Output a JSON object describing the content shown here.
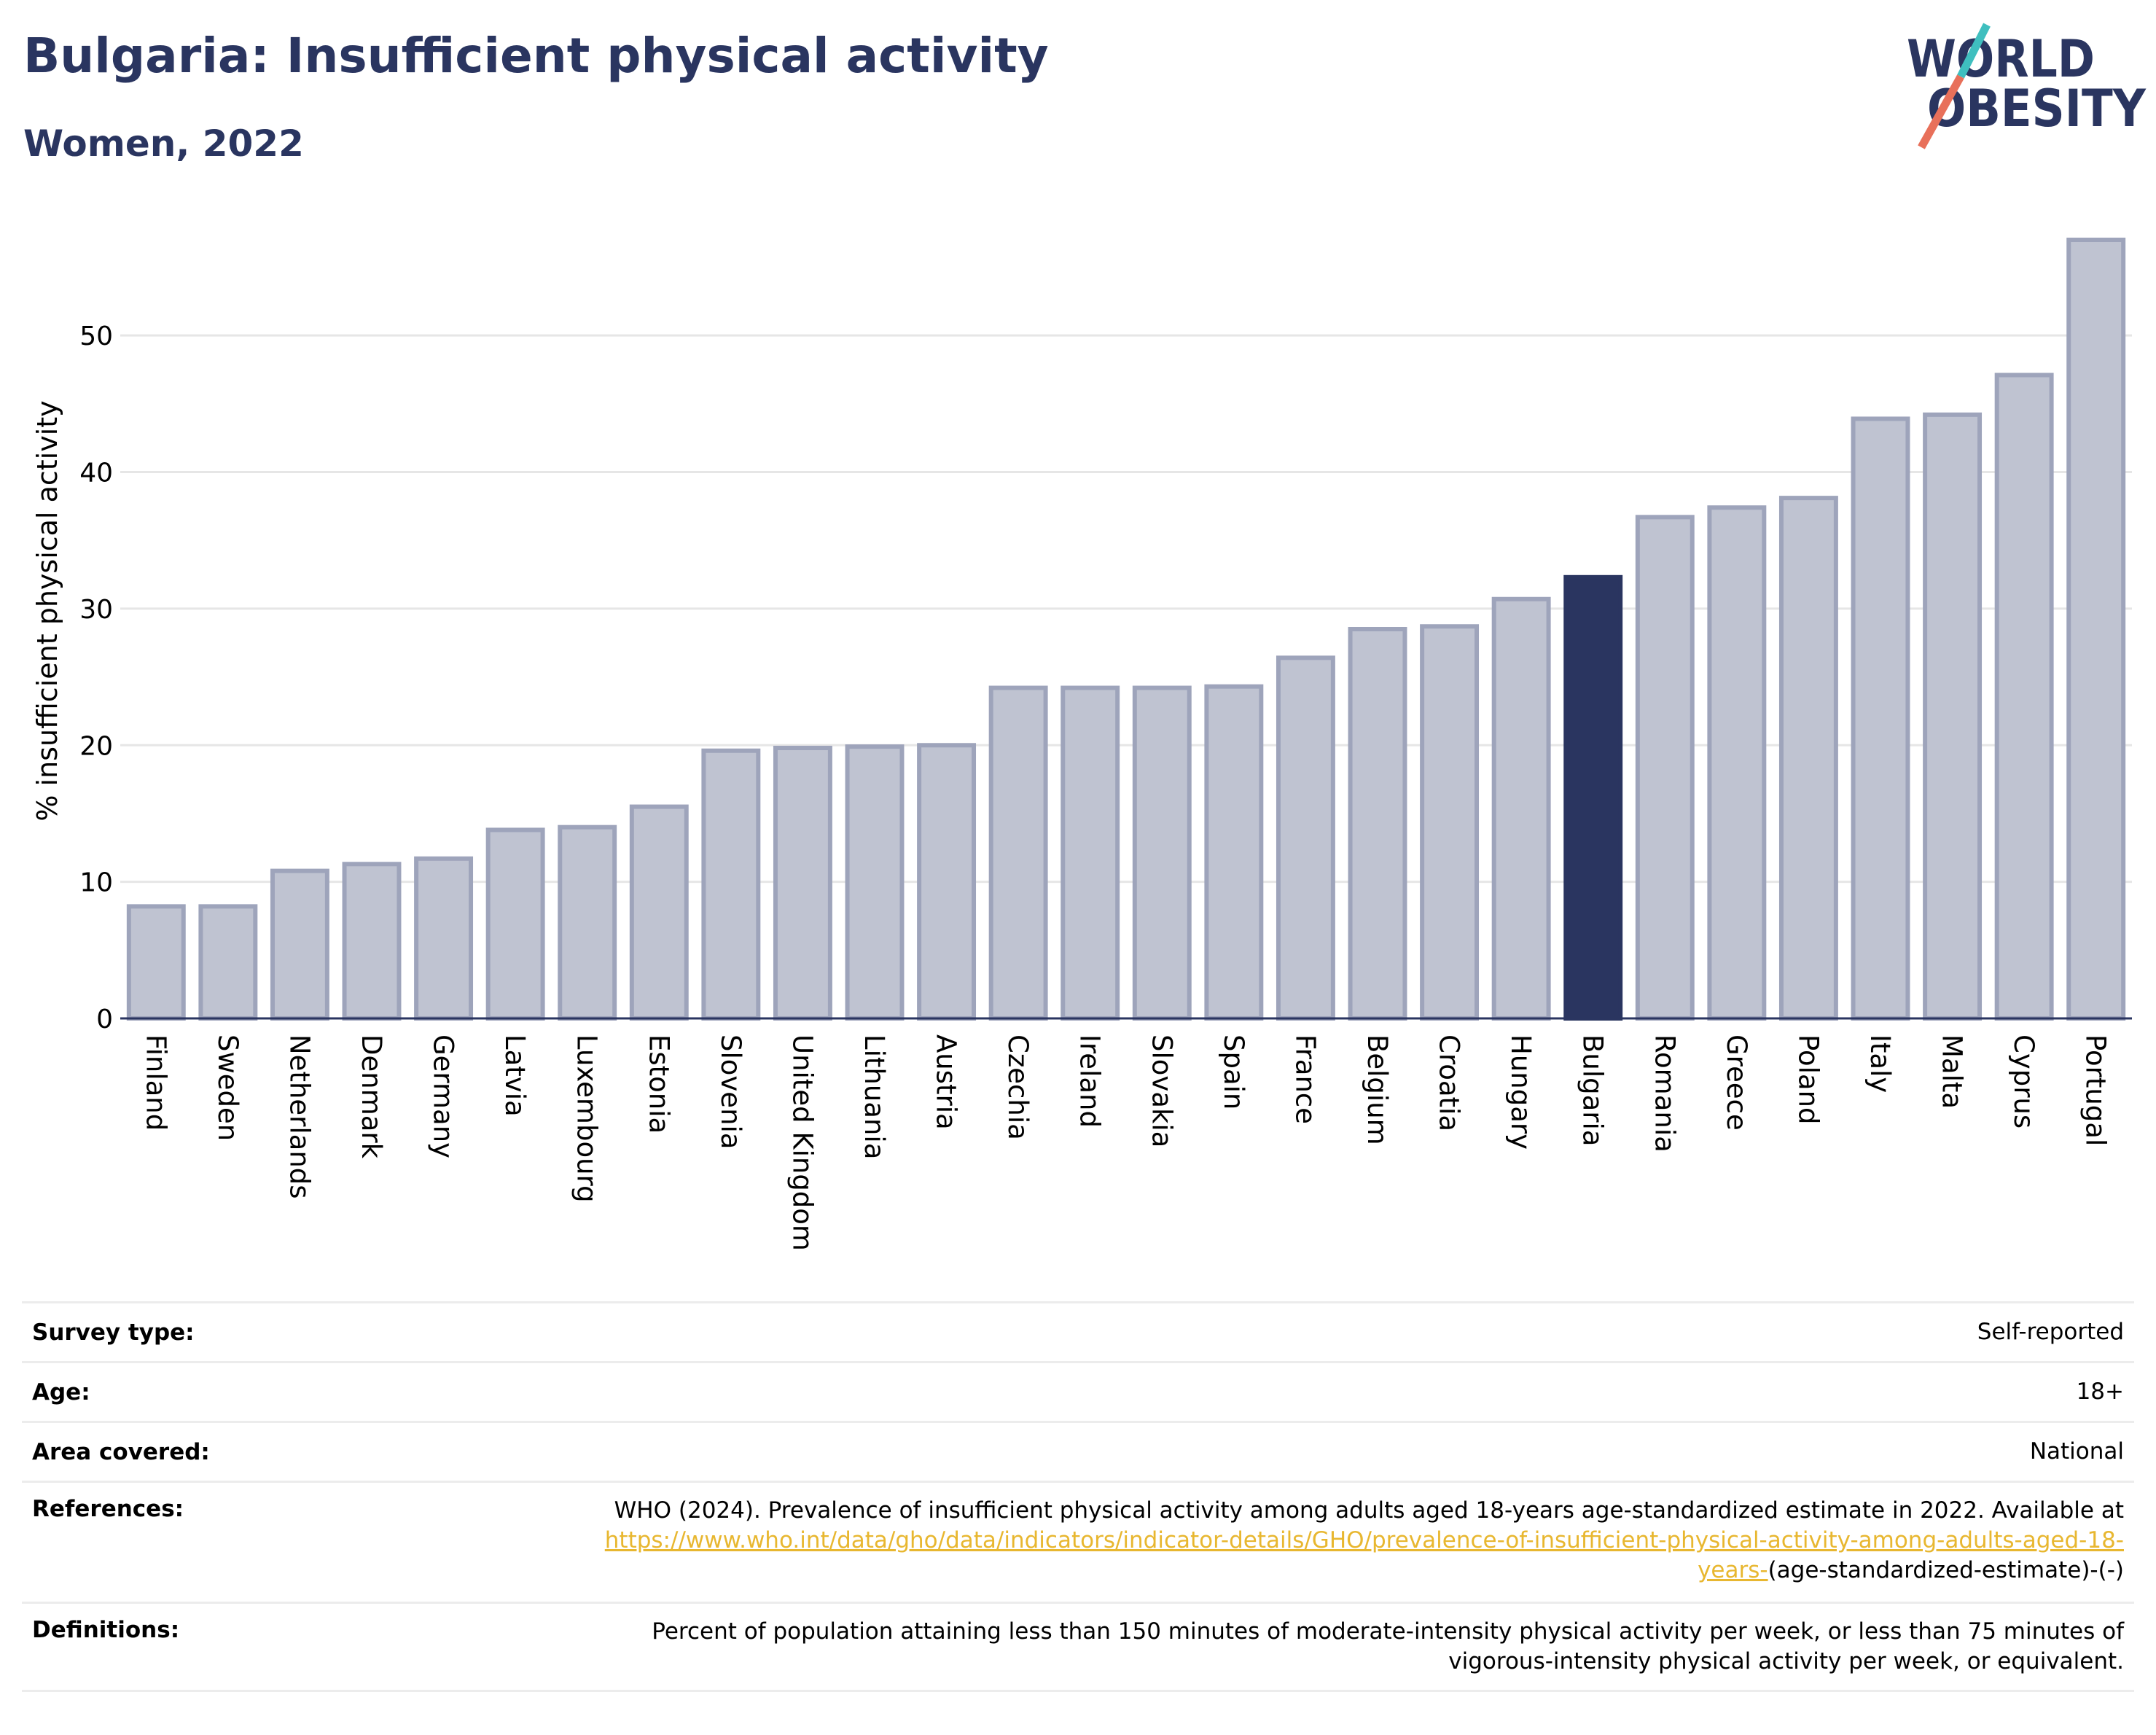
{
  "header": {
    "title": "Bulgaria: Insufficient physical activity",
    "subtitle": "Women, 2022"
  },
  "logo": {
    "line1": "WORLD",
    "line2": "OBESITY"
  },
  "colors": {
    "highlight": "#2a3560",
    "bar": "#bfc3d1",
    "bar_stroke": "#9ea4bb",
    "axis": "#2a3560",
    "grid": "#e6e6e6",
    "link": "#e8b730",
    "logo_teal": "#3fbfbf",
    "logo_red": "#e8705a"
  },
  "chart_data": {
    "type": "bar",
    "ylabel": "% insufficient physical activity",
    "ylim": [
      0,
      57
    ],
    "yticks": [
      0,
      10,
      20,
      30,
      40,
      50
    ],
    "grid": true,
    "highlight": "Bulgaria",
    "categories": [
      "Finland",
      "Sweden",
      "Netherlands",
      "Denmark",
      "Germany",
      "Latvia",
      "Luxembourg",
      "Estonia",
      "Slovenia",
      "United Kingdom",
      "Lithuania",
      "Austria",
      "Czechia",
      "Ireland",
      "Slovakia",
      "Spain",
      "France",
      "Belgium",
      "Croatia",
      "Hungary",
      "Bulgaria",
      "Romania",
      "Greece",
      "Poland",
      "Italy",
      "Malta",
      "Cyprus",
      "Portugal"
    ],
    "values": [
      8.2,
      8.2,
      10.8,
      11.3,
      11.7,
      13.8,
      14.0,
      15.5,
      19.6,
      19.8,
      19.9,
      20.0,
      24.2,
      24.2,
      24.2,
      24.3,
      26.4,
      28.5,
      28.7,
      30.7,
      32.3,
      36.7,
      37.4,
      38.1,
      43.9,
      44.2,
      47.1,
      57.0
    ]
  },
  "meta": {
    "survey_type": {
      "label": "Survey type:",
      "value": "Self-reported"
    },
    "age": {
      "label": "Age:",
      "value": "18+"
    },
    "area": {
      "label": "Area covered:",
      "value": "National"
    },
    "references": {
      "label": "References:",
      "text1": "WHO (2024). Prevalence of insufficient physical activity among adults aged 18-years age-standardized estimate in 2022. Available at",
      "link": "https://www.who.int/data/gho/data/indicators/indicator-details/GHO/prevalence-of-insufficient-physical-activity-among-adults-aged-18-years-",
      "text2": "(age-standardized-estimate)-(-)"
    },
    "definitions": {
      "label": "Definitions:",
      "value": "Percent of population attaining less than 150 minutes of moderate-intensity physical activity per week, or less than 75 minutes of vigorous-intensity physical activity per week, or equivalent."
    }
  }
}
